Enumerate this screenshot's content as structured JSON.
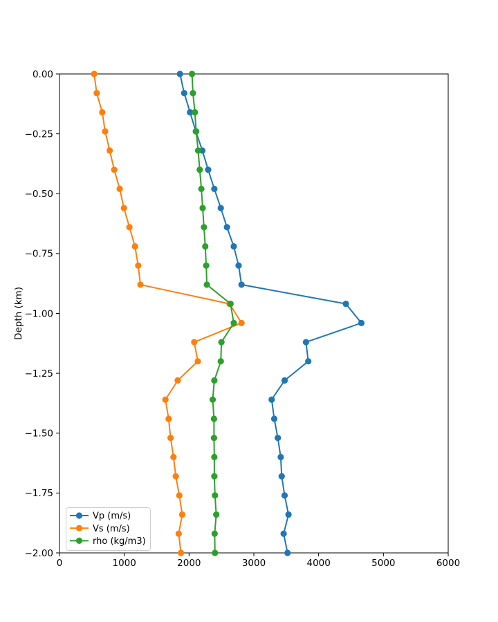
{
  "figure": {
    "background": "#ffffff",
    "plot_border_color": "#000000"
  },
  "chart_data": {
    "type": "line",
    "title": "",
    "xlabel": "",
    "ylabel": "Depth (km)",
    "xlim": [
      0,
      6000
    ],
    "ylim": [
      -2.0,
      0.0
    ],
    "xticks": [
      0,
      1000,
      2000,
      3000,
      4000,
      5000,
      6000
    ],
    "xtick_labels": [
      "0",
      "1000",
      "2000",
      "3000",
      "4000",
      "5000",
      "6000"
    ],
    "yticks": [
      0.0,
      -0.25,
      -0.5,
      -0.75,
      -1.0,
      -1.25,
      -1.5,
      -1.75,
      -2.0
    ],
    "ytick_labels": [
      "0.00",
      "−0.25",
      "−0.50",
      "−0.75",
      "−1.00",
      "−1.25",
      "−1.50",
      "−1.75",
      "−2.00"
    ],
    "grid": false,
    "legend_position": "lower left",
    "marker": "o",
    "depth_km": [
      0.0,
      -0.08,
      -0.16,
      -0.24,
      -0.32,
      -0.4,
      -0.48,
      -0.56,
      -0.64,
      -0.72,
      -0.8,
      -0.88,
      -0.96,
      -1.04,
      -1.12,
      -1.2,
      -1.28,
      -1.36,
      -1.44,
      -1.52,
      -1.6,
      -1.68,
      -1.76,
      -1.84,
      -1.92,
      -2.0
    ],
    "series": [
      {
        "name": "Vp (m/s)",
        "color": "#1f77b4",
        "values": [
          1860,
          1925,
          2015,
          2105,
          2205,
          2295,
          2390,
          2490,
          2585,
          2690,
          2765,
          2810,
          4420,
          4660,
          3805,
          3840,
          3475,
          3275,
          3315,
          3370,
          3415,
          3430,
          3475,
          3535,
          3460,
          3520
        ]
      },
      {
        "name": "Vs (m/s)",
        "color": "#ff7f0e",
        "values": [
          535,
          575,
          660,
          705,
          775,
          845,
          930,
          995,
          1080,
          1165,
          1215,
          1250,
          2625,
          2810,
          2080,
          2135,
          1825,
          1635,
          1685,
          1715,
          1760,
          1795,
          1850,
          1895,
          1840,
          1875
        ]
      },
      {
        "name": "rho (kg/m3)",
        "color": "#2ca02c",
        "values": [
          2045,
          2060,
          2090,
          2110,
          2140,
          2165,
          2190,
          2210,
          2230,
          2250,
          2265,
          2275,
          2640,
          2690,
          2500,
          2490,
          2390,
          2365,
          2385,
          2385,
          2390,
          2390,
          2400,
          2420,
          2395,
          2400
        ]
      }
    ]
  }
}
